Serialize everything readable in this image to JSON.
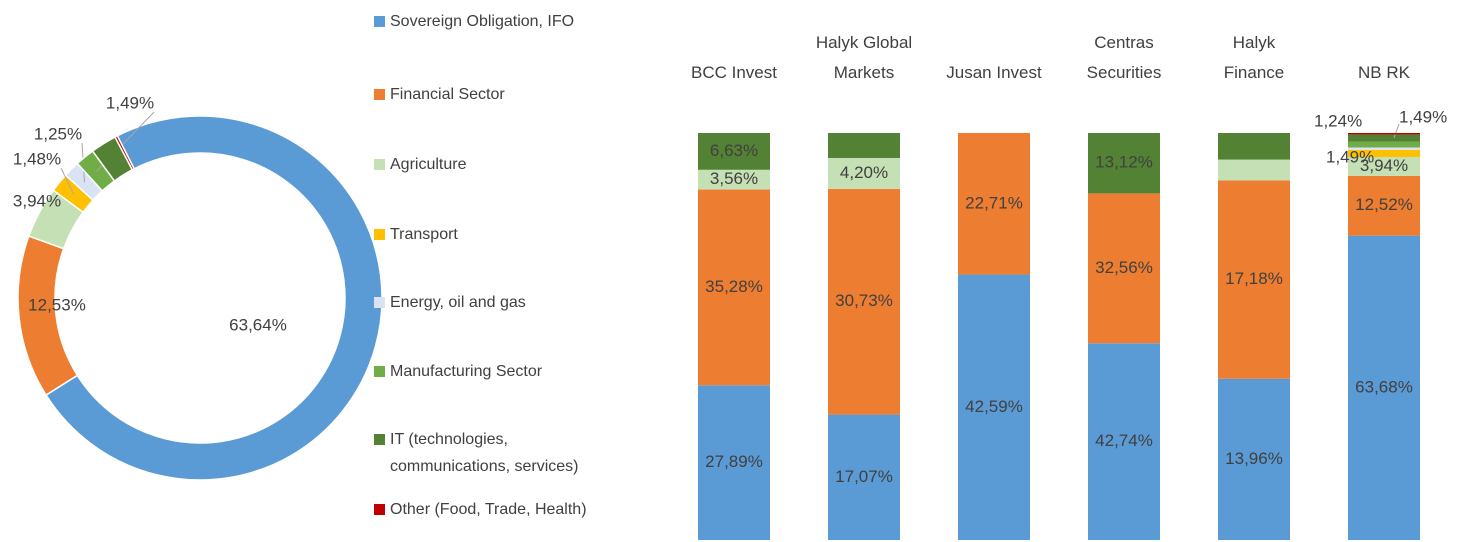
{
  "chart_data": [
    {
      "type": "pie",
      "hole": true,
      "values": [
        63.64,
        12.53,
        3.94,
        1.48,
        1.25,
        1.49,
        2.0,
        0.2
      ],
      "value_labels": [
        "63,64%",
        "12,53%",
        "3,94%",
        "1,48%",
        "1,25%",
        "1,49%",
        null,
        null
      ],
      "colors": [
        "#5b9bd5",
        "#ed7d31",
        "#c5e0b4",
        "#ffc000",
        "#dae3f3",
        "#70ad47",
        "#548235",
        "#c00000"
      ]
    },
    {
      "type": "bar",
      "stack": "percent",
      "categories": [
        "BCC Invest",
        "Halyk Global Markets",
        "Jusan Invest",
        "Centras Securities",
        "Halyk Finance",
        "NB RK"
      ],
      "series": [
        {
          "name": "Sovereign Obligation, IFO",
          "color": "#5b9bd5",
          "values": [
            27.89,
            17.07,
            42.59,
            42.74,
            13.96,
            63.68
          ],
          "value_labels": [
            "27,89%",
            "17,07%",
            "42,59%",
            "42,74%",
            "13,96%",
            "63,68%"
          ]
        },
        {
          "name": "Financial Sector",
          "color": "#ed7d31",
          "values": [
            35.28,
            30.73,
            22.71,
            32.56,
            17.18,
            12.52
          ],
          "value_labels": [
            "35,28%",
            "30,73%",
            "22,71%",
            "32,56%",
            "17,18%",
            "12,52%"
          ]
        },
        {
          "name": "Agriculture",
          "color": "#c5e0b4",
          "values": [
            3.56,
            4.2,
            null,
            null,
            1.8,
            3.94
          ],
          "value_labels": [
            "3,56%",
            "4,20%",
            null,
            null,
            null,
            "3,94%"
          ]
        },
        {
          "name": "Transport",
          "color": "#ffc000",
          "values": [
            null,
            null,
            null,
            null,
            null,
            1.49
          ],
          "value_labels": [
            null,
            null,
            null,
            null,
            null,
            "1,49%"
          ]
        },
        {
          "name": "Energy, oil and gas",
          "color": "#dae3f3",
          "values": [
            null,
            null,
            null,
            null,
            null,
            0.5
          ],
          "value_labels": [
            null,
            null,
            null,
            null,
            null,
            null
          ]
        },
        {
          "name": "Manufacturing Sector",
          "color": "#70ad47",
          "values": [
            null,
            null,
            null,
            null,
            null,
            1.24
          ],
          "value_labels": [
            null,
            null,
            null,
            null,
            null,
            "1,24%"
          ]
        },
        {
          "name": "IT (technologies, communications, services)",
          "color": "#548235",
          "values": [
            6.63,
            3.4,
            null,
            13.12,
            2.3,
            1.49
          ],
          "value_labels": [
            "6,63%",
            null,
            null,
            "13,12%",
            null,
            "1,49%"
          ]
        },
        {
          "name": "Other (Food, Trade, Health)",
          "color": "#c00000",
          "values": [
            null,
            null,
            null,
            null,
            null,
            0.3
          ],
          "value_labels": [
            null,
            null,
            null,
            null,
            null,
            null
          ]
        }
      ]
    }
  ]
}
